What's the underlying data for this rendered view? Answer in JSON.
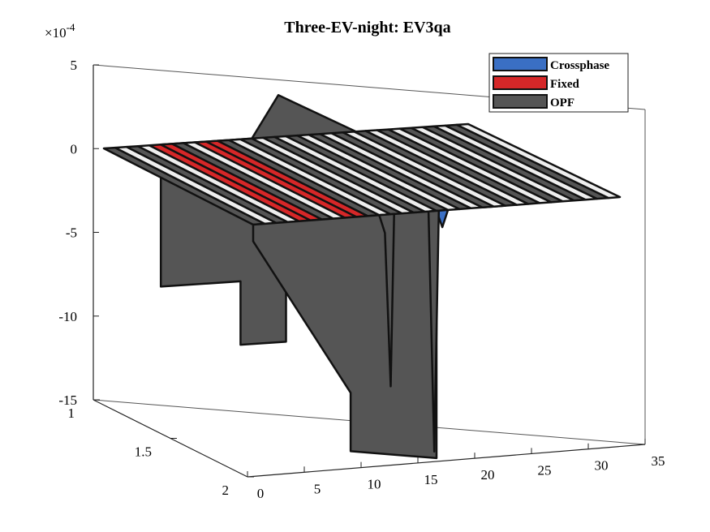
{
  "chart_data": {
    "type": "surface3d",
    "title": "Three-EV-night: EV3qa",
    "z_exponent_label": "×10",
    "z_exponent_power": "-4",
    "x_ticks": [
      "0",
      "5",
      "10",
      "15",
      "20",
      "25",
      "30",
      "35"
    ],
    "y_ticks": [
      "1",
      "1.5",
      "2"
    ],
    "z_ticks": [
      "5",
      "0",
      "-5",
      "-10",
      "-15"
    ],
    "xlim": [
      0,
      35
    ],
    "ylim": [
      1,
      2
    ],
    "zlim": [
      -15,
      5
    ],
    "grid": false,
    "legend_position": "top-right",
    "series": [
      {
        "name": "Crossphase",
        "color": "#3a6fc4",
        "notes_x": [
          12,
          17
        ],
        "min_values_e4": [
          -1.0,
          -1.0
        ]
      },
      {
        "name": "Fixed",
        "color": "#d62728",
        "highlight_x": [
          5,
          6,
          9,
          10
        ]
      },
      {
        "name": "OPF",
        "color": "#555555",
        "values_e4_at_y2": [
          0,
          0,
          0,
          0,
          0,
          0,
          0,
          0,
          0,
          0,
          0,
          0,
          -8.5,
          0,
          0,
          0,
          0,
          -15.5,
          0,
          0,
          0,
          0,
          0,
          0,
          0,
          0,
          0,
          0,
          0,
          0,
          0,
          0,
          0
        ],
        "values_e4_at_y1": [
          0,
          0,
          0,
          0,
          0,
          -8.5,
          0,
          0,
          0,
          0,
          0,
          0,
          0,
          0,
          0,
          0,
          0,
          0,
          0,
          0,
          0,
          0,
          0,
          0,
          0,
          0,
          0,
          0,
          0,
          0,
          0,
          0,
          0
        ],
        "peak_x": 15,
        "peak_value_e4": 3.0
      }
    ]
  }
}
